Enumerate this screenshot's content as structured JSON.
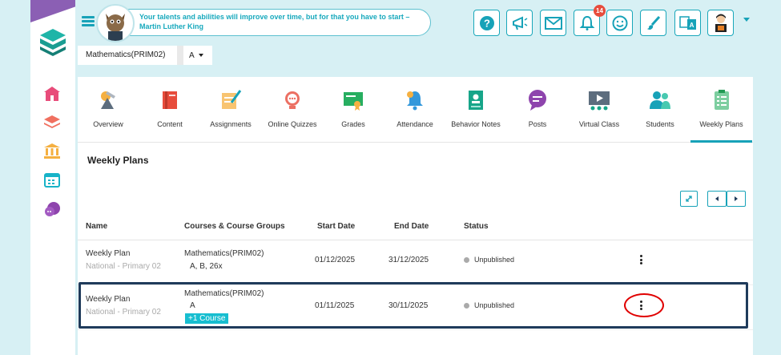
{
  "quote": {
    "text": "Your talents and abilities will improve over time, but for that you have to start – Martin Luther King"
  },
  "notifications": {
    "count": "14"
  },
  "breadcrumb": {
    "course": "Mathematics(PRIM02)",
    "group": "A"
  },
  "tabs": [
    {
      "label": "Overview",
      "icon": "overview-icon"
    },
    {
      "label": "Content",
      "icon": "content-book-icon"
    },
    {
      "label": "Assignments",
      "icon": "assignments-icon"
    },
    {
      "label": "Online Quizzes",
      "icon": "quiz-icon"
    },
    {
      "label": "Grades",
      "icon": "grades-certificate-icon"
    },
    {
      "label": "Attendance",
      "icon": "attendance-bell-icon"
    },
    {
      "label": "Behavior Notes",
      "icon": "behavior-notes-icon"
    },
    {
      "label": "Posts",
      "icon": "posts-chat-icon"
    },
    {
      "label": "Virtual Class",
      "icon": "virtual-class-icon"
    },
    {
      "label": "Students",
      "icon": "students-icon"
    },
    {
      "label": "Weekly Plans",
      "icon": "weekly-plans-icon"
    }
  ],
  "active_tab": "Weekly Plans",
  "section": {
    "title": "Weekly Plans"
  },
  "table": {
    "headers": {
      "name": "Name",
      "courses": "Courses & Course Groups",
      "start": "Start Date",
      "end": "End Date",
      "status": "Status"
    },
    "rows": [
      {
        "name": "Weekly Plan",
        "subtitle": "National - Primary 02",
        "course": "Mathematics(PRIM02)",
        "groups": "A, B, 26x",
        "extra": "",
        "start": "01/12/2025",
        "end": "31/12/2025",
        "status": "Unpublished"
      },
      {
        "name": "Weekly Plan",
        "subtitle": "National - Primary 02",
        "course": "Mathematics(PRIM02)",
        "groups": "A",
        "extra": "+1 Course",
        "start": "01/11/2025",
        "end": "30/11/2025",
        "status": "Unpublished"
      }
    ]
  },
  "colors": {
    "accent": "#17a2b8",
    "background": "#d7f0f4",
    "highlight_box": "#1f3b5b",
    "annotation_circle": "#e00000",
    "badge": "#17bed0",
    "notification": "#e74c3c"
  }
}
